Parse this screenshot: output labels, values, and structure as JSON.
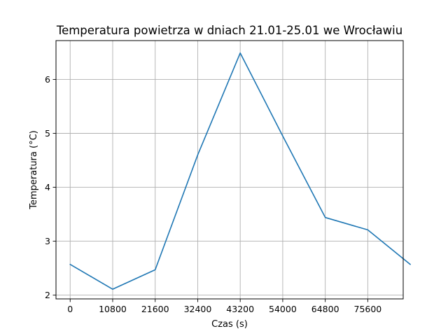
{
  "chart_data": {
    "type": "line",
    "title": "Temperatura powietrza w dniach 21.01-25.01 we Wrocławiu",
    "xlabel": "Czas (s)",
    "ylabel": "Temperatura (°C)",
    "xlim": [
      -3600,
      84600
    ],
    "ylim": [
      1.93,
      6.72
    ],
    "xticks": [
      0,
      10800,
      21600,
      32400,
      43200,
      54000,
      64800,
      75600
    ],
    "xtick_labels": [
      "0",
      "10800",
      "21600",
      "32400",
      "43200",
      "54000",
      "64800",
      "75600"
    ],
    "yticks": [
      2,
      3,
      4,
      5,
      6
    ],
    "ytick_labels": [
      "2",
      "3",
      "4",
      "5",
      "6"
    ],
    "grid": true,
    "series": [
      {
        "color": "#1f77b4",
        "x": [
          0,
          10800,
          21600,
          32400,
          43200,
          54000,
          64800,
          75600,
          86400
        ],
        "y": [
          2.57,
          2.11,
          2.47,
          4.6,
          6.49,
          4.95,
          3.44,
          3.21,
          2.57
        ]
      }
    ]
  }
}
